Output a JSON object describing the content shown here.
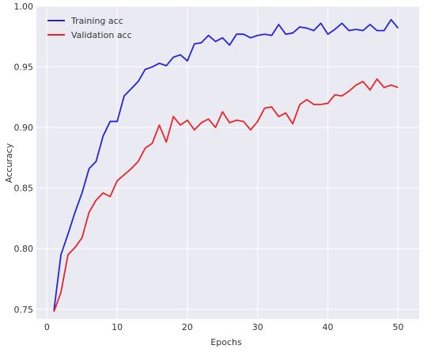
{
  "chart_data": {
    "type": "line",
    "xlabel": "Epochs",
    "ylabel": "Accuracy",
    "xlim": [
      -1.5,
      53
    ],
    "ylim": [
      0.742,
      1.0
    ],
    "xticks": [
      0,
      10,
      20,
      30,
      40,
      50
    ],
    "yticks": [
      0.75,
      0.8,
      0.85,
      0.9,
      0.95,
      1.0
    ],
    "ytick_labels": [
      "0.75",
      "0.80",
      "0.85",
      "0.90",
      "0.95",
      "1.00"
    ],
    "grid": true,
    "legend_position": "upper-left",
    "x": [
      1,
      2,
      3,
      4,
      5,
      6,
      7,
      8,
      9,
      10,
      11,
      12,
      13,
      14,
      15,
      16,
      17,
      18,
      19,
      20,
      21,
      22,
      23,
      24,
      25,
      26,
      27,
      28,
      29,
      30,
      31,
      32,
      33,
      34,
      35,
      36,
      37,
      38,
      39,
      40,
      41,
      42,
      43,
      44,
      45,
      46,
      47,
      48,
      49,
      50
    ],
    "series": [
      {
        "name": "Training acc",
        "color": "#2424d8",
        "values": [
          0.749,
          0.795,
          0.812,
          0.83,
          0.846,
          0.866,
          0.872,
          0.893,
          0.905,
          0.905,
          0.926,
          0.932,
          0.938,
          0.948,
          0.95,
          0.953,
          0.951,
          0.958,
          0.96,
          0.955,
          0.969,
          0.97,
          0.976,
          0.971,
          0.974,
          0.968,
          0.977,
          0.977,
          0.974,
          0.976,
          0.977,
          0.976,
          0.985,
          0.977,
          0.978,
          0.983,
          0.982,
          0.98,
          0.986,
          0.977,
          0.981,
          0.986,
          0.98,
          0.981,
          0.98,
          0.985,
          0.98,
          0.98,
          0.989,
          0.982
        ]
      },
      {
        "name": "Validation acc",
        "color": "#e8262a",
        "values": [
          0.748,
          0.764,
          0.795,
          0.801,
          0.809,
          0.83,
          0.84,
          0.846,
          0.843,
          0.856,
          0.861,
          0.866,
          0.872,
          0.883,
          0.887,
          0.902,
          0.888,
          0.909,
          0.902,
          0.906,
          0.898,
          0.904,
          0.907,
          0.9,
          0.913,
          0.904,
          0.906,
          0.905,
          0.898,
          0.905,
          0.916,
          0.917,
          0.909,
          0.912,
          0.903,
          0.919,
          0.923,
          0.919,
          0.919,
          0.92,
          0.927,
          0.926,
          0.93,
          0.935,
          0.938,
          0.931,
          0.94,
          0.933,
          0.935,
          0.933
        ]
      }
    ]
  },
  "colors": {
    "plot_background": "#eaeaf2",
    "grid": "#ffffff",
    "text": "#333333"
  }
}
